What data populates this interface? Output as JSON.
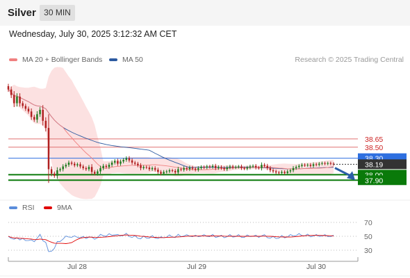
{
  "header": {
    "title": "Silver",
    "timeframe": "30 MIN"
  },
  "datetime": "Wednesday, July 30, 2025 3:12:32 AM CET",
  "legend": {
    "ma20": {
      "label": "MA 20 + Bollinger Bands",
      "color": "#f08080"
    },
    "ma50": {
      "label": "MA 50",
      "color": "#2c5aa0"
    },
    "rsi": {
      "label": "RSI",
      "color": "#5b8ddb"
    },
    "nine_ma": {
      "label": "9MA",
      "color": "#e00000"
    }
  },
  "credit": "Research © 2025 Trading Central",
  "chart_data": [
    {
      "type": "candlestick",
      "title": "Silver",
      "ylim": [
        37.6,
        39.85
      ],
      "levels": [
        {
          "value": 38.65,
          "label": "38.65",
          "kind": "resistance",
          "color": "#e07070"
        },
        {
          "value": 38.5,
          "label": "38.50",
          "kind": "resistance",
          "color": "#e07070"
        },
        {
          "value": 38.3,
          "label": "38.30",
          "kind": "pivot",
          "color": "#2e6fe0"
        },
        {
          "value": 38.19,
          "label": "38.19",
          "kind": "last-price",
          "color": "#333333"
        },
        {
          "value": 38.0,
          "label": "38.00",
          "kind": "support",
          "color": "#0a7a0a"
        },
        {
          "value": 37.9,
          "label": "37.90",
          "kind": "support",
          "color": "#0a7a0a"
        }
      ],
      "arrow": "down",
      "x_ticks": [
        "Jul 28",
        "Jul 29",
        "Jul 30"
      ],
      "close": [
        39.55,
        39.45,
        39.3,
        39.42,
        39.3,
        39.25,
        39.2,
        39.15,
        39.05,
        39.0,
        39.1,
        39.18,
        38.98,
        38.85,
        38.1,
        38.02,
        37.98,
        38.08,
        38.1,
        38.15,
        38.18,
        38.22,
        38.2,
        38.17,
        38.19,
        38.15,
        38.12,
        38.1,
        38.14,
        38.05,
        38.02,
        38.06,
        38.12,
        38.16,
        38.14,
        38.18,
        38.22,
        38.25,
        38.2,
        38.24,
        38.27,
        38.3,
        38.26,
        38.22,
        38.2,
        38.17,
        38.12,
        38.14,
        38.13,
        38.1,
        38.12,
        38.09,
        38.05,
        38.02,
        38.05,
        38.06,
        38.08,
        38.07,
        38.04,
        38.1,
        38.09,
        38.12,
        38.1,
        38.13,
        38.11,
        38.09,
        38.12,
        38.14,
        38.13,
        38.15,
        38.14,
        38.16,
        38.12,
        38.14,
        38.12,
        38.1,
        38.13,
        38.15,
        38.13,
        38.14,
        38.15,
        38.12,
        38.11,
        38.13,
        38.15,
        38.16,
        38.13,
        38.12,
        38.18,
        38.16,
        38.12,
        38.08,
        38.06,
        38.04,
        38.03,
        38.05,
        38.03,
        38.06,
        38.08,
        38.12,
        38.14,
        38.16,
        38.18,
        38.17,
        38.18,
        38.16,
        38.19,
        38.18,
        38.2,
        38.21,
        38.2,
        38.21,
        38.2,
        38.19
      ]
    },
    {
      "type": "line",
      "title": "RSI",
      "ylim": [
        20,
        80
      ],
      "y_ticks": [
        70,
        50,
        30
      ],
      "x_ticks": [
        "Jul 28",
        "Jul 29",
        "Jul 30"
      ]
    }
  ]
}
